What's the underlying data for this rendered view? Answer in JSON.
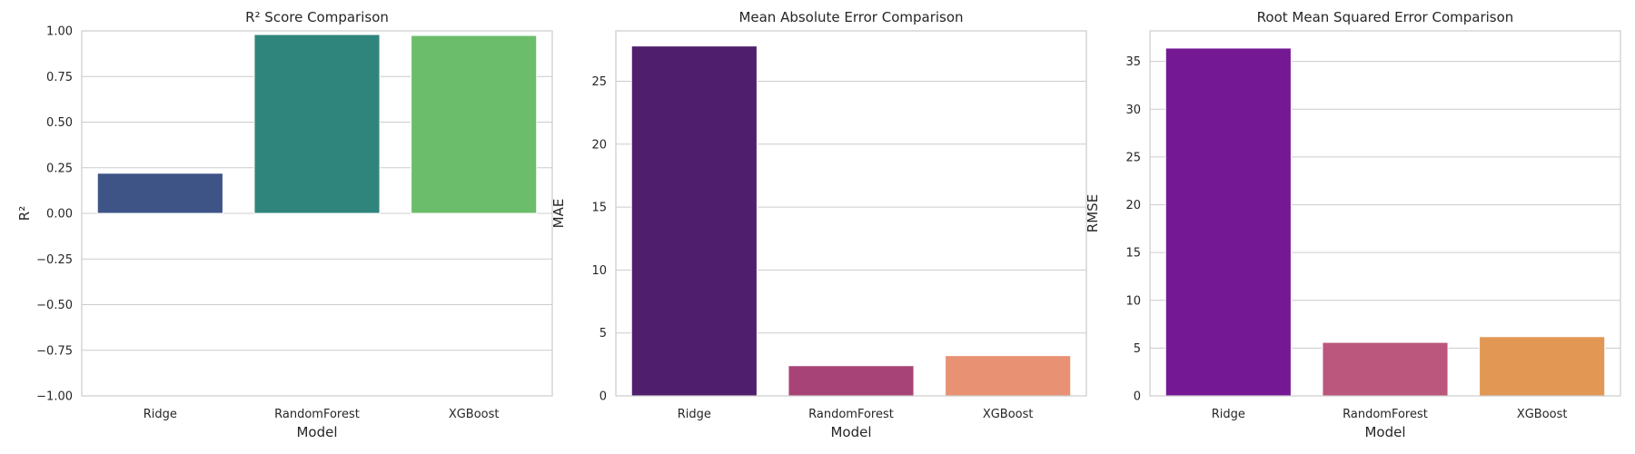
{
  "chart_data": [
    {
      "type": "bar",
      "title": "R² Score Comparison",
      "xlabel": "Model",
      "ylabel": "R²",
      "categories": [
        "Ridge",
        "RandomForest",
        "XGBoost"
      ],
      "values": [
        0.22,
        0.98,
        0.975
      ],
      "colors": [
        "#3e5487",
        "#2f857c",
        "#6cbd6b"
      ],
      "ylim": [
        -1.0,
        1.0
      ],
      "yticks": [
        -1.0,
        -0.75,
        -0.5,
        -0.25,
        0.0,
        0.25,
        0.5,
        0.75,
        1.0
      ],
      "ytick_labels": [
        "−1.00",
        "−0.75",
        "−0.50",
        "−0.25",
        "0.00",
        "0.25",
        "0.50",
        "0.75",
        "1.00"
      ],
      "grid": true
    },
    {
      "type": "bar",
      "title": "Mean Absolute Error Comparison",
      "xlabel": "Model",
      "ylabel": "MAE",
      "categories": [
        "Ridge",
        "RandomForest",
        "XGBoost"
      ],
      "values": [
        27.8,
        2.4,
        3.2
      ],
      "colors": [
        "#4f1f6d",
        "#a84377",
        "#e89273"
      ],
      "ylim": [
        0,
        29
      ],
      "yticks": [
        0,
        5,
        10,
        15,
        20,
        25
      ],
      "ytick_labels": [
        "0",
        "5",
        "10",
        "15",
        "20",
        "25"
      ],
      "grid": true
    },
    {
      "type": "bar",
      "title": "Root Mean Squared Error Comparison",
      "xlabel": "Model",
      "ylabel": "RMSE",
      "categories": [
        "Ridge",
        "RandomForest",
        "XGBoost"
      ],
      "values": [
        36.4,
        5.6,
        6.2
      ],
      "colors": [
        "#741894",
        "#bb567c",
        "#e29755"
      ],
      "ylim": [
        0,
        38.2
      ],
      "yticks": [
        0,
        5,
        10,
        15,
        20,
        25,
        30,
        35
      ],
      "ytick_labels": [
        "0",
        "5",
        "10",
        "15",
        "20",
        "25",
        "30",
        "35"
      ],
      "grid": true
    }
  ]
}
